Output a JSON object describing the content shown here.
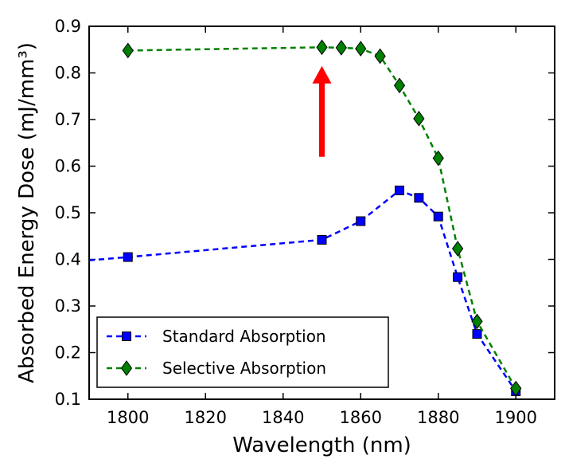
{
  "chart_data": {
    "type": "line",
    "xlabel": "Wavelength (nm)",
    "ylabel": "Absorbed Energy Dose (mJ/mm³)",
    "xlim": [
      1790,
      1910
    ],
    "ylim": [
      0.1,
      0.9
    ],
    "xticks": [
      "1800",
      "1820",
      "1840",
      "1860",
      "1880",
      "1900"
    ],
    "yticks": [
      "0.1",
      "0.2",
      "0.3",
      "0.4",
      "0.5",
      "0.6",
      "0.7",
      "0.8",
      "0.9"
    ],
    "grid": false,
    "legend_position": "bottom-left",
    "series": [
      {
        "name": "Standard Absorption",
        "color": "#0000ff",
        "marker": "square",
        "linestyle": "dashed",
        "x": [
          1790,
          1800,
          1850,
          1860,
          1870,
          1875,
          1880,
          1885,
          1890,
          1900
        ],
        "y": [
          0.398,
          0.405,
          0.442,
          0.482,
          0.548,
          0.532,
          0.492,
          0.362,
          0.24,
          0.117
        ],
        "marker_x": [
          1800,
          1850,
          1860,
          1870,
          1875,
          1880,
          1885,
          1890,
          1900
        ],
        "marker_y": [
          0.405,
          0.442,
          0.482,
          0.548,
          0.532,
          0.492,
          0.362,
          0.24,
          0.117
        ]
      },
      {
        "name": "Selective Absorption",
        "color": "#008000",
        "marker": "diamond",
        "linestyle": "dashed",
        "x": [
          1800,
          1850,
          1855,
          1860,
          1865,
          1870,
          1875,
          1880,
          1885,
          1890,
          1900
        ],
        "y": [
          0.848,
          0.855,
          0.854,
          0.852,
          0.836,
          0.773,
          0.702,
          0.617,
          0.423,
          0.267,
          0.123
        ],
        "marker_x": [
          1800,
          1850,
          1855,
          1860,
          1865,
          1870,
          1875,
          1880,
          1885,
          1890,
          1900
        ],
        "marker_y": [
          0.848,
          0.855,
          0.854,
          0.852,
          0.836,
          0.773,
          0.702,
          0.617,
          0.423,
          0.267,
          0.123
        ]
      }
    ],
    "annotations": [
      {
        "type": "arrow",
        "color": "#ff0000",
        "direction": "up",
        "x": 1850,
        "y_from": 0.62,
        "y_to": 0.815
      }
    ]
  }
}
